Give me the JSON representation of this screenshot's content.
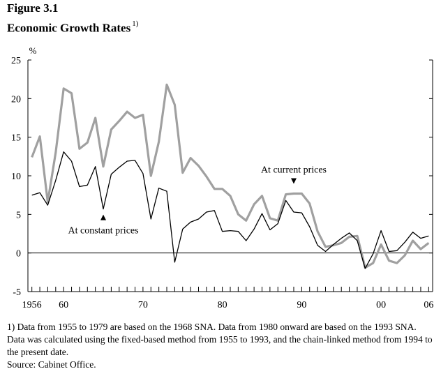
{
  "figure_label": "Figure 3.1",
  "title": "Economic Growth Rates",
  "title_note_ref": "1)",
  "notes": [
    "1) Data from 1955 to 1979 are based on the 1968 SNA. Data from 1980 onward are based on the 1993 SNA. Data was calculated using the fixed-based method from 1955 to 1993, and the chain-linked method from 1994 to the present date.",
    "Source:  Cabinet Office."
  ],
  "colors": {
    "constant": "#000000",
    "current": "#a0a0a0",
    "axis": "#000000"
  },
  "chart_data": {
    "type": "line",
    "xlabel": "",
    "ylabel": "%",
    "xlim": [
      1955.5,
      2006.5
    ],
    "ylim": [
      -5,
      25
    ],
    "yticks": [
      -5,
      0,
      5,
      10,
      15,
      20,
      25
    ],
    "xticklabels": [
      {
        "x": 1956,
        "label": "1956"
      },
      {
        "x": 1960,
        "label": "60"
      },
      {
        "x": 1970,
        "label": "70"
      },
      {
        "x": 1980,
        "label": "80"
      },
      {
        "x": 1990,
        "label": "90"
      },
      {
        "x": 2000,
        "label": "00"
      },
      {
        "x": 2006,
        "label": "06"
      }
    ],
    "x": [
      1956,
      1957,
      1958,
      1959,
      1960,
      1961,
      1962,
      1963,
      1964,
      1965,
      1966,
      1967,
      1968,
      1969,
      1970,
      1971,
      1972,
      1973,
      1974,
      1975,
      1976,
      1977,
      1978,
      1979,
      1980,
      1981,
      1982,
      1983,
      1984,
      1985,
      1986,
      1987,
      1988,
      1989,
      1990,
      1991,
      1992,
      1993,
      1994,
      1995,
      1996,
      1997,
      1998,
      1999,
      2000,
      2001,
      2002,
      2003,
      2004,
      2005,
      2006
    ],
    "series": [
      {
        "name": "At constant prices",
        "key": "constant",
        "values": [
          7.5,
          7.8,
          6.2,
          9.4,
          13.1,
          11.9,
          8.6,
          8.8,
          11.2,
          5.7,
          10.2,
          11.1,
          11.9,
          12.0,
          10.3,
          4.4,
          8.4,
          8.0,
          -1.2,
          3.1,
          4.0,
          4.4,
          5.3,
          5.5,
          2.8,
          2.9,
          2.8,
          1.6,
          3.1,
          5.1,
          3.0,
          3.8,
          6.8,
          5.3,
          5.2,
          3.4,
          1.0,
          0.2,
          1.1,
          1.9,
          2.6,
          1.6,
          -2.0,
          -0.1,
          2.9,
          0.2,
          0.3,
          1.4,
          2.7,
          1.9,
          2.2
        ]
      },
      {
        "name": "At current prices",
        "key": "current",
        "values": [
          12.4,
          15.1,
          6.6,
          13.0,
          21.3,
          20.7,
          13.5,
          14.3,
          17.5,
          11.2,
          16.0,
          17.1,
          18.3,
          17.5,
          17.9,
          10.0,
          14.4,
          21.8,
          19.2,
          10.4,
          12.3,
          11.3,
          9.9,
          8.3,
          8.3,
          7.4,
          5.0,
          4.2,
          6.3,
          7.4,
          4.5,
          4.2,
          7.6,
          7.7,
          7.7,
          6.4,
          2.8,
          0.8,
          1.0,
          1.3,
          2.1,
          2.2,
          -1.9,
          -1.3,
          1.1,
          -1.0,
          -1.3,
          -0.3,
          1.6,
          0.5,
          1.3
        ]
      }
    ],
    "annotations": [
      {
        "text": "At current prices",
        "marker": "down-triangle",
        "series": "current",
        "x": 1989
      },
      {
        "text": "At constant prices",
        "marker": "up-triangle",
        "series": "constant",
        "x": 1965
      }
    ],
    "grid": false,
    "legend": "none"
  }
}
